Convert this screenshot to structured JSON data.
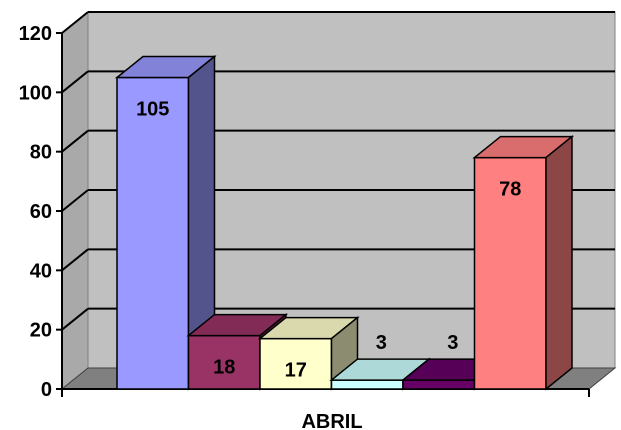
{
  "chart_data": {
    "type": "bar",
    "categories": [
      "ABRIL"
    ],
    "series": [
      {
        "values": [
          105
        ],
        "color": "#9999FF"
      },
      {
        "values": [
          18
        ],
        "color": "#993366"
      },
      {
        "values": [
          17
        ],
        "color": "#FFFFCC"
      },
      {
        "values": [
          3
        ],
        "color": "#CCFFFF"
      },
      {
        "values": [
          3
        ],
        "color": "#660066"
      },
      {
        "values": [
          78
        ],
        "color": "#FF8080"
      }
    ],
    "data_labels": [
      "105",
      "18",
      "17",
      "3",
      "3",
      "78"
    ],
    "y_ticks": [
      "0",
      "20",
      "40",
      "60",
      "80",
      "100",
      "120"
    ],
    "ylim": [
      0,
      120
    ],
    "grid": true,
    "style": "3d-column",
    "wall_color": "#C0C0C0",
    "title": "",
    "xlabel": "",
    "ylabel": ""
  }
}
